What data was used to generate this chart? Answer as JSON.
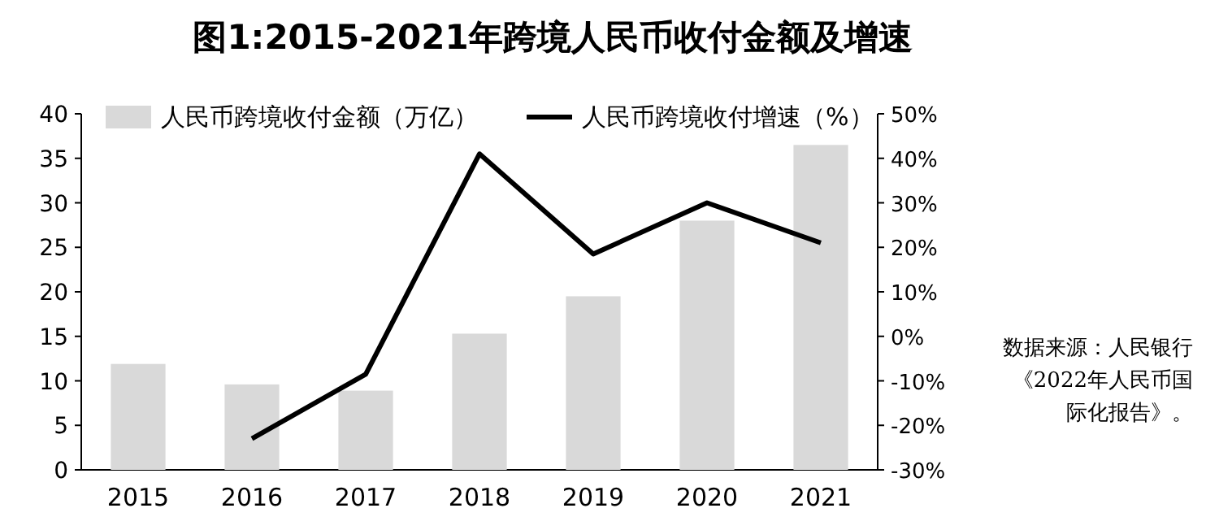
{
  "chart_data": {
    "type": "bar",
    "title": "图1:2015-2021年跨境人民币收付金额及增速",
    "categories": [
      "2015",
      "2016",
      "2017",
      "2018",
      "2019",
      "2020",
      "2021"
    ],
    "series": [
      {
        "name": "人民币跨境收付金额（万亿）",
        "color": "#d9d9d9",
        "values": [
          11.9,
          9.6,
          8.9,
          15.3,
          19.5,
          28.0,
          36.5
        ]
      },
      {
        "name": "人民币跨境收付增速（%）",
        "type": "line",
        "axis": "y2",
        "color": "#000000",
        "values": [
          null,
          -23,
          -8.5,
          41,
          18.5,
          30,
          21
        ]
      }
    ],
    "ylim": [
      0,
      40
    ],
    "yticks": [
      0,
      5,
      10,
      15,
      20,
      25,
      30,
      35,
      40
    ],
    "y2lim": [
      -30,
      50
    ],
    "y2ticks": [
      {
        "value": -30,
        "label": "-30%"
      },
      {
        "value": -20,
        "label": "-20%"
      },
      {
        "value": -10,
        "label": "-10%"
      },
      {
        "value": 0,
        "label": "0%"
      },
      {
        "value": 10,
        "label": "10%"
      },
      {
        "value": 20,
        "label": "20%"
      },
      {
        "value": 30,
        "label": "30%"
      },
      {
        "value": 40,
        "label": "40%"
      },
      {
        "value": 50,
        "label": "50%"
      }
    ],
    "legend": "top",
    "annotations": [
      "数据来源：人民银行《2022年人民币国际化报告》。"
    ]
  }
}
